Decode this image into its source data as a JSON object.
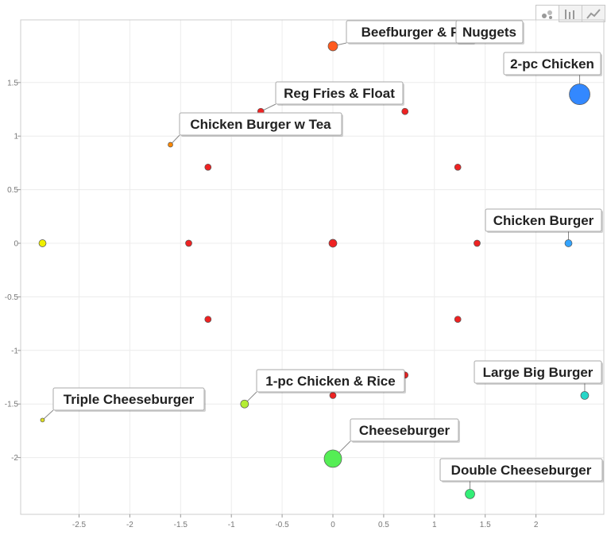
{
  "toolbar": {
    "buttons": [
      {
        "name": "scatter-chart-button",
        "icon": "scatter-icon",
        "active": true
      },
      {
        "name": "bar-chart-button",
        "icon": "bar-chart-icon",
        "active": false
      },
      {
        "name": "line-chart-button",
        "icon": "line-chart-icon",
        "active": false
      }
    ]
  },
  "chart_data": {
    "type": "scatter",
    "title": "",
    "xlabel": "",
    "ylabel": "",
    "xlim": [
      -3.0,
      2.7
    ],
    "ylim": [
      -2.5,
      2.0
    ],
    "grid": true,
    "x_ticks": [
      "-2.5",
      "-2",
      "-1.5",
      "-1",
      "-0.5",
      "0",
      "0.5",
      "1",
      "1.5",
      "2"
    ],
    "y_ticks": [
      "1.5",
      "1",
      "0.5",
      "0",
      "-0.5",
      "-1",
      "-1.5",
      "-2"
    ],
    "points": [
      {
        "label": "Beefburger & F",
        "x": 0.0,
        "y": 1.84,
        "size": 6,
        "color": "#ff5a1e",
        "callout": true
      },
      {
        "label": "Nuggets",
        "x": 1.1,
        "y": 1.91,
        "size": 5,
        "color": "#3a3af0",
        "callout": true
      },
      {
        "label": "2-pc Chicken",
        "x": 2.43,
        "y": 1.39,
        "size": 13,
        "color": "#3388ff",
        "callout": true
      },
      {
        "label": "Reg Fries & Float",
        "x": -0.71,
        "y": 1.23,
        "size": 4,
        "color": "#ee2222",
        "callout": true
      },
      {
        "label": "Chicken Burger w Tea",
        "x": -1.6,
        "y": 0.92,
        "size": 3,
        "color": "#ff8800",
        "callout": true
      },
      {
        "label": "Chicken Burger",
        "x": 2.32,
        "y": 0.0,
        "size": 4.5,
        "color": "#33a3ff",
        "callout": true
      },
      {
        "label": "Large Big Burger",
        "x": 2.48,
        "y": -1.42,
        "size": 5,
        "color": "#28d6c8",
        "callout": true
      },
      {
        "label": "1-pc Chicken & Rice",
        "x": -0.87,
        "y": -1.5,
        "size": 5,
        "color": "#b4ee33",
        "callout": true
      },
      {
        "label": "Triple Cheeseburger",
        "x": -2.86,
        "y": -1.65,
        "size": 2.5,
        "color": "#dddd22",
        "callout": true
      },
      {
        "label": "Cheeseburger",
        "x": 0.0,
        "y": -2.01,
        "size": 11,
        "color": "#55ee55",
        "callout": true
      },
      {
        "label": "Double Cheeseburger",
        "x": 1.35,
        "y": -2.34,
        "size": 6,
        "color": "#33ee77",
        "callout": true
      },
      {
        "label": "",
        "x": -2.86,
        "y": 0.0,
        "size": 4.5,
        "color": "#f0f000",
        "callout": false
      },
      {
        "label": "",
        "x": 0.71,
        "y": 1.23,
        "size": 4,
        "color": "#ee2222",
        "callout": false
      },
      {
        "label": "",
        "x": -1.23,
        "y": 0.71,
        "size": 4,
        "color": "#ee2222",
        "callout": false
      },
      {
        "label": "",
        "x": 1.23,
        "y": 0.71,
        "size": 4,
        "color": "#ee2222",
        "callout": false
      },
      {
        "label": "",
        "x": -1.42,
        "y": 0.0,
        "size": 4,
        "color": "#ee2222",
        "callout": false
      },
      {
        "label": "",
        "x": 0.0,
        "y": 0.0,
        "size": 5,
        "color": "#ee2222",
        "callout": false
      },
      {
        "label": "",
        "x": 1.42,
        "y": 0.0,
        "size": 4,
        "color": "#ee2222",
        "callout": false
      },
      {
        "label": "",
        "x": -1.23,
        "y": -0.71,
        "size": 4,
        "color": "#ee2222",
        "callout": false
      },
      {
        "label": "",
        "x": 1.23,
        "y": -0.71,
        "size": 4,
        "color": "#ee2222",
        "callout": false
      },
      {
        "label": "",
        "x": 0.71,
        "y": -1.23,
        "size": 4,
        "color": "#ee2222",
        "callout": false
      },
      {
        "label": "",
        "x": 0.0,
        "y": -1.42,
        "size": 4,
        "color": "#ee2222",
        "callout": false
      }
    ]
  }
}
